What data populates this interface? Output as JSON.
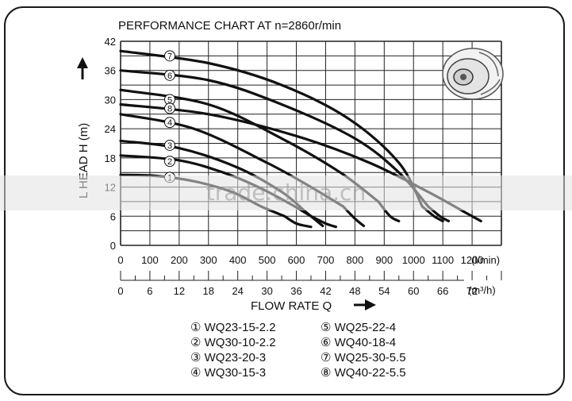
{
  "chart_data": {
    "type": "line",
    "title": "PERFORMANCE CHART AT n=2860r/min",
    "ylabel": "L HEAD H (m)",
    "xlabel": "FLOW RATE Q",
    "x_unit_primary": "(l/min)",
    "x_unit_secondary": "(m³/h)",
    "xlim": [
      0,
      1300
    ],
    "ylim": [
      0,
      42
    ],
    "grid": true,
    "y_ticks": [
      "0",
      "6",
      "12",
      "18",
      "24",
      "30",
      "36",
      "42"
    ],
    "x_ticks_lmin": [
      "0",
      "100",
      "200",
      "300",
      "400",
      "500",
      "600",
      "700",
      "800",
      "900",
      "1000",
      "1100",
      "1200"
    ],
    "x_ticks_m3h": [
      "0",
      "6",
      "12",
      "18",
      "24",
      "30",
      "36",
      "42",
      "48",
      "54",
      "60",
      "66",
      "72"
    ],
    "series": [
      {
        "name": "WQ23-15-2.2",
        "marker": "1",
        "label_y": 14,
        "points": [
          [
            0,
            14.5
          ],
          [
            120,
            14.3
          ],
          [
            250,
            13.2
          ],
          [
            380,
            11
          ],
          [
            480,
            8
          ],
          [
            560,
            6
          ]
        ],
        "tail": [
          [
            560,
            6
          ],
          [
            600,
            4.5
          ],
          [
            650,
            3.8
          ]
        ]
      },
      {
        "name": "WQ30-10-2.2",
        "marker": "2",
        "label_y": 17.3,
        "points": [
          [
            0,
            18.5
          ],
          [
            200,
            17.5
          ],
          [
            350,
            15
          ],
          [
            470,
            12
          ],
          [
            580,
            8.5
          ],
          [
            650,
            6
          ]
        ],
        "tail": [
          [
            650,
            6
          ],
          [
            700,
            4.5
          ],
          [
            735,
            3.8
          ]
        ]
      },
      {
        "name": "WQ23-20-3",
        "marker": "3",
        "label_y": 20.6,
        "points": [
          [
            0,
            21.5
          ],
          [
            200,
            20
          ],
          [
            400,
            16
          ],
          [
            550,
            11
          ],
          [
            630,
            7
          ]
        ],
        "tail": [
          [
            630,
            7
          ],
          [
            670,
            5
          ],
          [
            690,
            4
          ]
        ]
      },
      {
        "name": "WQ30-15-3",
        "marker": "4",
        "label_y": 25.3,
        "points": [
          [
            0,
            27
          ],
          [
            250,
            24
          ],
          [
            500,
            17
          ],
          [
            650,
            12
          ],
          [
            760,
            8
          ]
        ],
        "tail": [
          [
            760,
            8
          ],
          [
            800,
            5.5
          ],
          [
            830,
            4
          ]
        ]
      },
      {
        "name": "WQ25-22-4",
        "marker": "5",
        "label_y": 30,
        "points": [
          [
            0,
            32
          ],
          [
            300,
            29
          ],
          [
            550,
            22
          ],
          [
            750,
            15
          ],
          [
            880,
            9
          ]
        ],
        "tail": [
          [
            880,
            9
          ],
          [
            920,
            6
          ],
          [
            950,
            5
          ]
        ]
      },
      {
        "name": "WQ40-18-4",
        "marker": "6",
        "label_y": 35,
        "points": [
          [
            0,
            36
          ],
          [
            300,
            34
          ],
          [
            550,
            29
          ],
          [
            800,
            22
          ],
          [
            950,
            15
          ],
          [
            1050,
            8
          ]
        ],
        "tail": [
          [
            1050,
            8
          ],
          [
            1090,
            6
          ],
          [
            1120,
            5
          ]
        ]
      },
      {
        "name": "WQ25-30-5.5",
        "marker": "7",
        "label_y": 39,
        "points": [
          [
            0,
            40
          ],
          [
            300,
            37.5
          ],
          [
            550,
            33
          ],
          [
            780,
            26
          ],
          [
            950,
            17
          ],
          [
            1030,
            8
          ]
        ],
        "tail": [
          [
            1030,
            8
          ],
          [
            1070,
            6
          ],
          [
            1100,
            5
          ]
        ]
      },
      {
        "name": "WQ40-22-5.5",
        "marker": "8",
        "label_y": 28.2,
        "points": [
          [
            0,
            29
          ],
          [
            300,
            27
          ],
          [
            600,
            22.5
          ],
          [
            850,
            17
          ],
          [
            1050,
            11
          ],
          [
            1170,
            7
          ]
        ],
        "tail": [
          [
            1170,
            7
          ],
          [
            1200,
            6
          ],
          [
            1230,
            5
          ]
        ]
      }
    ]
  },
  "labels": {
    "y_axis_label": "L HEAD H (m)",
    "x_axis_label": "FLOW RATE Q",
    "watermark": "trade.china.cn",
    "legend_symbols": [
      "①",
      "②",
      "③",
      "④",
      "⑤",
      "⑥",
      "⑦",
      "⑧"
    ]
  }
}
